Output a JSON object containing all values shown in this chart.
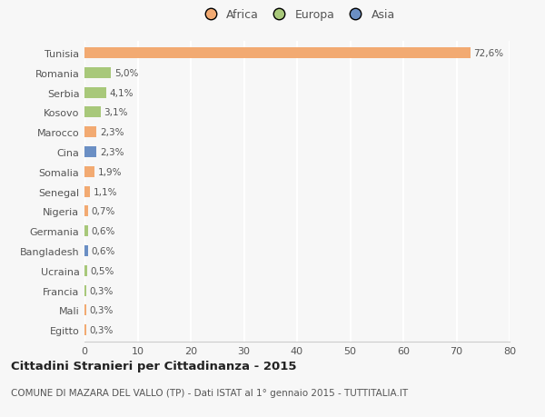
{
  "categories": [
    "Tunisia",
    "Romania",
    "Serbia",
    "Kosovo",
    "Marocco",
    "Cina",
    "Somalia",
    "Senegal",
    "Nigeria",
    "Germania",
    "Bangladesh",
    "Ucraina",
    "Francia",
    "Mali",
    "Egitto"
  ],
  "values": [
    72.6,
    5.0,
    4.1,
    3.1,
    2.3,
    2.3,
    1.9,
    1.1,
    0.7,
    0.6,
    0.6,
    0.5,
    0.3,
    0.3,
    0.3
  ],
  "labels": [
    "72,6%",
    "5,0%",
    "4,1%",
    "3,1%",
    "2,3%",
    "2,3%",
    "1,9%",
    "1,1%",
    "0,7%",
    "0,6%",
    "0,6%",
    "0,5%",
    "0,3%",
    "0,3%",
    "0,3%"
  ],
  "colors": [
    "#F2AA72",
    "#A8C87A",
    "#A8C87A",
    "#A8C87A",
    "#F2AA72",
    "#6B8FC4",
    "#F2AA72",
    "#F2AA72",
    "#F2AA72",
    "#A8C87A",
    "#6B8FC4",
    "#A8C87A",
    "#A8C87A",
    "#F2AA72",
    "#F2AA72"
  ],
  "legend": [
    {
      "label": "Africa",
      "color": "#F2AA72"
    },
    {
      "label": "Europa",
      "color": "#A8C87A"
    },
    {
      "label": "Asia",
      "color": "#6B8FC4"
    }
  ],
  "xlim": [
    0,
    80
  ],
  "xticks": [
    0,
    10,
    20,
    30,
    40,
    50,
    60,
    70,
    80
  ],
  "title": "Cittadini Stranieri per Cittadinanza - 2015",
  "subtitle": "COMUNE DI MAZARA DEL VALLO (TP) - Dati ISTAT al 1° gennaio 2015 - TUTTITALIA.IT",
  "background_color": "#F7F7F7",
  "grid_color": "#FFFFFF",
  "bar_height": 0.55,
  "label_fontsize": 7.5,
  "ytick_fontsize": 8.0,
  "xtick_fontsize": 8.0,
  "title_fontsize": 9.5,
  "subtitle_fontsize": 7.5
}
